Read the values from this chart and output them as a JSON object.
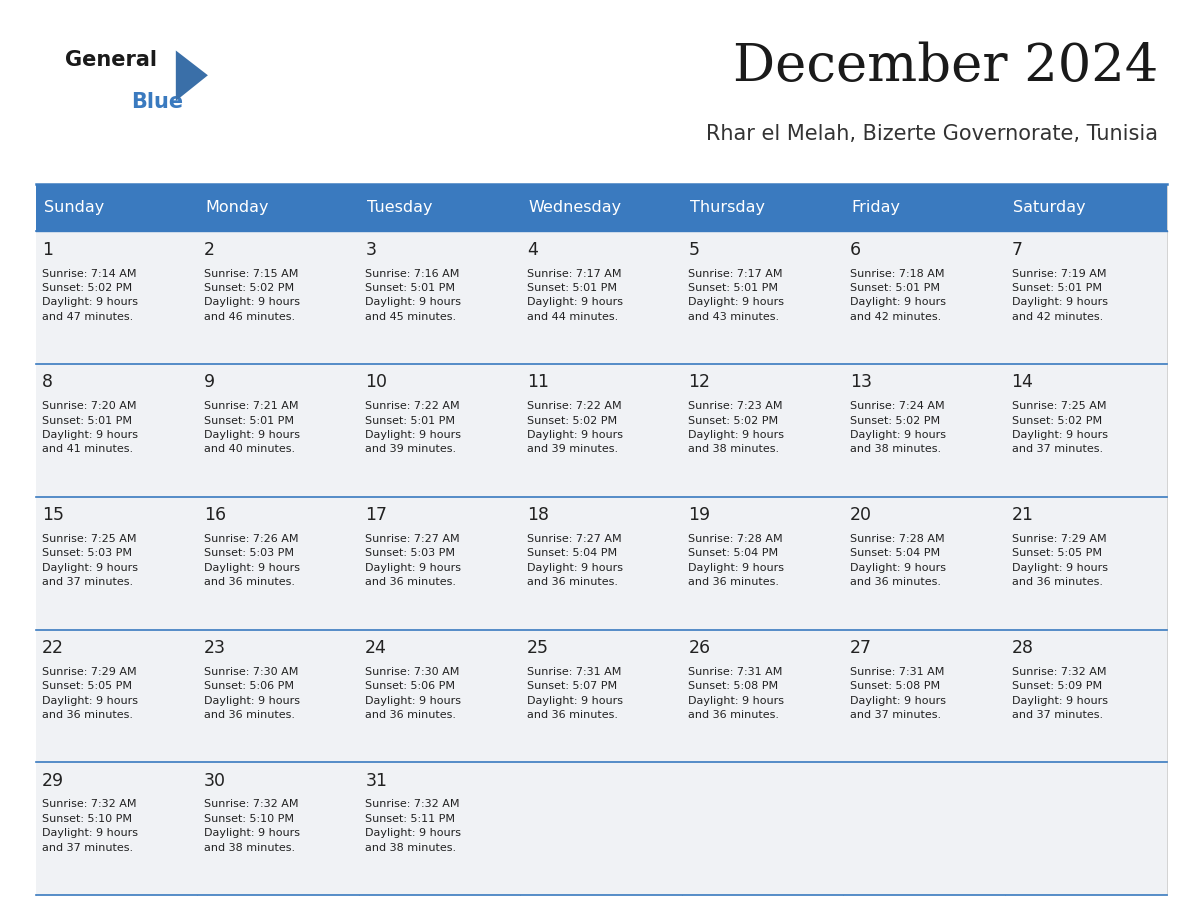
{
  "title": "December 2024",
  "subtitle": "Rhar el Melah, Bizerte Governorate, Tunisia",
  "header_bg": "#3a7abf",
  "header_text": "#ffffff",
  "cell_bg": "#f5f5f5",
  "border_color": "#3a7abf",
  "text_color": "#222222",
  "days_of_week": [
    "Sunday",
    "Monday",
    "Tuesday",
    "Wednesday",
    "Thursday",
    "Friday",
    "Saturday"
  ],
  "calendar": [
    [
      {
        "day": 1,
        "sunrise": "7:14 AM",
        "sunset": "5:02 PM",
        "daylight_hours": 9,
        "daylight_minutes": 47
      },
      {
        "day": 2,
        "sunrise": "7:15 AM",
        "sunset": "5:02 PM",
        "daylight_hours": 9,
        "daylight_minutes": 46
      },
      {
        "day": 3,
        "sunrise": "7:16 AM",
        "sunset": "5:01 PM",
        "daylight_hours": 9,
        "daylight_minutes": 45
      },
      {
        "day": 4,
        "sunrise": "7:17 AM",
        "sunset": "5:01 PM",
        "daylight_hours": 9,
        "daylight_minutes": 44
      },
      {
        "day": 5,
        "sunrise": "7:17 AM",
        "sunset": "5:01 PM",
        "daylight_hours": 9,
        "daylight_minutes": 43
      },
      {
        "day": 6,
        "sunrise": "7:18 AM",
        "sunset": "5:01 PM",
        "daylight_hours": 9,
        "daylight_minutes": 42
      },
      {
        "day": 7,
        "sunrise": "7:19 AM",
        "sunset": "5:01 PM",
        "daylight_hours": 9,
        "daylight_minutes": 42
      }
    ],
    [
      {
        "day": 8,
        "sunrise": "7:20 AM",
        "sunset": "5:01 PM",
        "daylight_hours": 9,
        "daylight_minutes": 41
      },
      {
        "day": 9,
        "sunrise": "7:21 AM",
        "sunset": "5:01 PM",
        "daylight_hours": 9,
        "daylight_minutes": 40
      },
      {
        "day": 10,
        "sunrise": "7:22 AM",
        "sunset": "5:01 PM",
        "daylight_hours": 9,
        "daylight_minutes": 39
      },
      {
        "day": 11,
        "sunrise": "7:22 AM",
        "sunset": "5:02 PM",
        "daylight_hours": 9,
        "daylight_minutes": 39
      },
      {
        "day": 12,
        "sunrise": "7:23 AM",
        "sunset": "5:02 PM",
        "daylight_hours": 9,
        "daylight_minutes": 38
      },
      {
        "day": 13,
        "sunrise": "7:24 AM",
        "sunset": "5:02 PM",
        "daylight_hours": 9,
        "daylight_minutes": 38
      },
      {
        "day": 14,
        "sunrise": "7:25 AM",
        "sunset": "5:02 PM",
        "daylight_hours": 9,
        "daylight_minutes": 37
      }
    ],
    [
      {
        "day": 15,
        "sunrise": "7:25 AM",
        "sunset": "5:03 PM",
        "daylight_hours": 9,
        "daylight_minutes": 37
      },
      {
        "day": 16,
        "sunrise": "7:26 AM",
        "sunset": "5:03 PM",
        "daylight_hours": 9,
        "daylight_minutes": 36
      },
      {
        "day": 17,
        "sunrise": "7:27 AM",
        "sunset": "5:03 PM",
        "daylight_hours": 9,
        "daylight_minutes": 36
      },
      {
        "day": 18,
        "sunrise": "7:27 AM",
        "sunset": "5:04 PM",
        "daylight_hours": 9,
        "daylight_minutes": 36
      },
      {
        "day": 19,
        "sunrise": "7:28 AM",
        "sunset": "5:04 PM",
        "daylight_hours": 9,
        "daylight_minutes": 36
      },
      {
        "day": 20,
        "sunrise": "7:28 AM",
        "sunset": "5:04 PM",
        "daylight_hours": 9,
        "daylight_minutes": 36
      },
      {
        "day": 21,
        "sunrise": "7:29 AM",
        "sunset": "5:05 PM",
        "daylight_hours": 9,
        "daylight_minutes": 36
      }
    ],
    [
      {
        "day": 22,
        "sunrise": "7:29 AM",
        "sunset": "5:05 PM",
        "daylight_hours": 9,
        "daylight_minutes": 36
      },
      {
        "day": 23,
        "sunrise": "7:30 AM",
        "sunset": "5:06 PM",
        "daylight_hours": 9,
        "daylight_minutes": 36
      },
      {
        "day": 24,
        "sunrise": "7:30 AM",
        "sunset": "5:06 PM",
        "daylight_hours": 9,
        "daylight_minutes": 36
      },
      {
        "day": 25,
        "sunrise": "7:31 AM",
        "sunset": "5:07 PM",
        "daylight_hours": 9,
        "daylight_minutes": 36
      },
      {
        "day": 26,
        "sunrise": "7:31 AM",
        "sunset": "5:08 PM",
        "daylight_hours": 9,
        "daylight_minutes": 36
      },
      {
        "day": 27,
        "sunrise": "7:31 AM",
        "sunset": "5:08 PM",
        "daylight_hours": 9,
        "daylight_minutes": 37
      },
      {
        "day": 28,
        "sunrise": "7:32 AM",
        "sunset": "5:09 PM",
        "daylight_hours": 9,
        "daylight_minutes": 37
      }
    ],
    [
      {
        "day": 29,
        "sunrise": "7:32 AM",
        "sunset": "5:10 PM",
        "daylight_hours": 9,
        "daylight_minutes": 37
      },
      {
        "day": 30,
        "sunrise": "7:32 AM",
        "sunset": "5:10 PM",
        "daylight_hours": 9,
        "daylight_minutes": 38
      },
      {
        "day": 31,
        "sunrise": "7:32 AM",
        "sunset": "5:11 PM",
        "daylight_hours": 9,
        "daylight_minutes": 38
      },
      null,
      null,
      null,
      null
    ]
  ]
}
